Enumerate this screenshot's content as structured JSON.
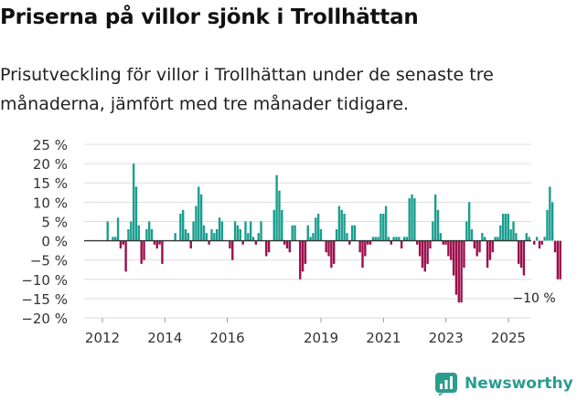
{
  "header": {
    "title": "Priserna på villor sjönk i Trollhättan",
    "subtitle": "Prisutveckling för villor i Trollhättan under de senaste tre månaderna, jämfört med tre månader tidigare."
  },
  "brand": {
    "name": "Newsworthy",
    "color": "#2a9d8f"
  },
  "colors": {
    "positive": "#1a9e8f",
    "negative": "#9b0f4c",
    "grid": "#dddddd",
    "zero_line": "#333333"
  },
  "chart_data": {
    "type": "bar",
    "title": "Priserna på villor sjönk i Trollhättan",
    "xlabel": "",
    "ylabel": "",
    "ylim": [
      -20,
      25
    ],
    "yticks": [
      25,
      20,
      15,
      10,
      5,
      0,
      -5,
      -10,
      -15,
      -20
    ],
    "ytick_labels": [
      "25 %",
      "20 %",
      "15 %",
      "10 %",
      "5 %",
      "0 %",
      "−5 %",
      "−10 %",
      "−15 %",
      "−20 %"
    ],
    "xtick_labels": [
      "2012",
      "2014",
      "2016",
      "2019",
      "2021",
      "2023",
      "2025"
    ],
    "xtick_positions": [
      2012,
      2014,
      2016,
      2019,
      2021,
      2023,
      2025
    ],
    "x_start": 2012.0,
    "x_step": 0.0833,
    "values": [
      0,
      0,
      5,
      0,
      1,
      1,
      6,
      -2,
      -1,
      -8,
      3,
      5,
      20,
      14,
      4,
      -6,
      -5,
      3,
      5,
      3,
      -1,
      -2,
      -1,
      -6,
      0,
      0,
      0,
      0,
      2,
      0,
      7,
      8,
      3,
      2,
      -2,
      5,
      9,
      14,
      12,
      4,
      2,
      -1,
      3,
      2,
      3,
      6,
      5,
      0,
      0,
      -2,
      -5,
      5,
      4,
      3,
      -1,
      5,
      2,
      5,
      1,
      -1,
      2,
      5,
      0,
      -4,
      -3,
      0,
      8,
      17,
      13,
      8,
      -1,
      -2,
      -3,
      4,
      4,
      0,
      -10,
      -8,
      -6,
      4,
      1,
      2,
      6,
      7,
      3,
      0,
      -3,
      -4,
      -7,
      -6,
      3,
      9,
      8,
      7,
      2,
      -1,
      4,
      4,
      0,
      -3,
      -7,
      -4,
      -1,
      -1,
      1,
      1,
      1,
      7,
      7,
      9,
      1,
      -1,
      1,
      1,
      1,
      -2,
      1,
      1,
      11,
      12,
      11,
      -1,
      -4,
      -7,
      -8,
      -6,
      -2,
      5,
      12,
      8,
      2,
      -1,
      -1,
      -4,
      -5,
      -9,
      -14,
      -16,
      -16,
      -7,
      5,
      10,
      3,
      -2,
      -4,
      -3,
      2,
      1,
      -7,
      -5,
      -3,
      1,
      1,
      4,
      7,
      7,
      7,
      3,
      5,
      2,
      -6,
      -7,
      -9,
      2,
      1,
      0,
      -1,
      1,
      -2,
      -1,
      1,
      8,
      14,
      10,
      -3,
      -10,
      -10
    ],
    "annotations": [
      {
        "text": "−10 %",
        "value": -10
      }
    ]
  }
}
